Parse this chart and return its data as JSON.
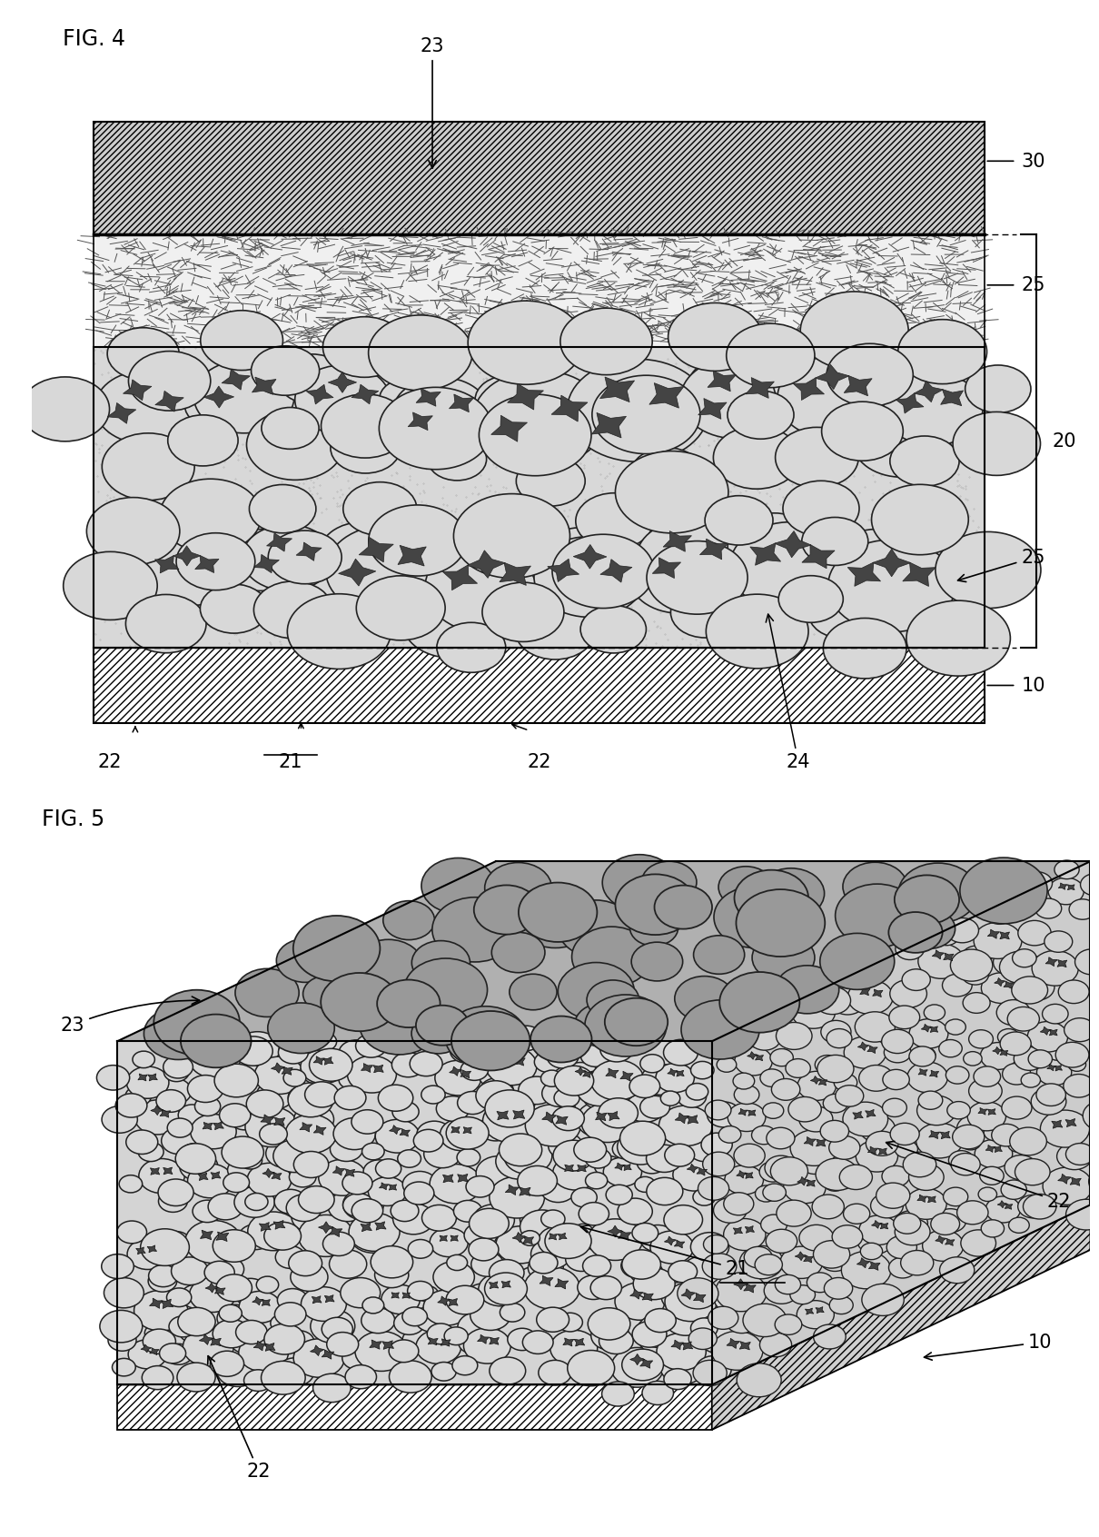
{
  "fig_width": 12.4,
  "fig_height": 17.24,
  "background_color": "#ffffff",
  "fig4_title": "FIG. 4",
  "fig5_title": "FIG. 5"
}
